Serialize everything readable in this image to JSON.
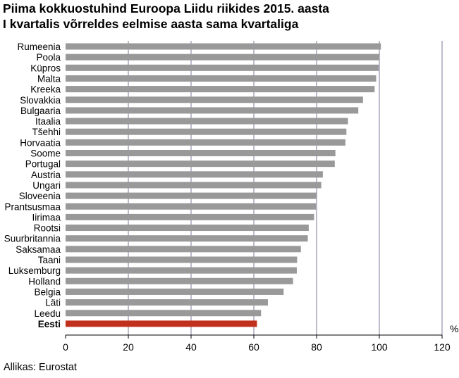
{
  "title_lines": [
    "Piima kokkuostuhind Euroopa Liidu riikides 2015. aasta",
    "I kvartalis võrreldes eelmise aasta sama kvartaliga"
  ],
  "source": "Allikas: Eurostat",
  "chart_data": {
    "type": "bar",
    "orientation": "horizontal",
    "categories": [
      "Rumeenia",
      "Poola",
      "Küpros",
      "Malta",
      "Kreeka",
      "Slovakkia",
      "Bulgaaria",
      "Itaalia",
      "Tšehhi",
      "Horvaatia",
      "Soome",
      "Portugal",
      "Austria",
      "Ungari",
      "Sloveenia",
      "Prantsusmaa",
      "Iirimaa",
      "Rootsi",
      "Suurbritannia",
      "Saksamaa",
      "Taani",
      "Luksemburg",
      "Holland",
      "Belgia",
      "Läti",
      "Leedu",
      "Eesti"
    ],
    "values": [
      100.5,
      100,
      99.8,
      99,
      98.5,
      94.8,
      93.3,
      90,
      89.5,
      89.2,
      86,
      85.8,
      82,
      81.5,
      80,
      79.8,
      79.2,
      77.5,
      77.2,
      75,
      73.8,
      73.7,
      72.5,
      69.5,
      64.5,
      62.3,
      61
    ],
    "highlight": "Eesti",
    "xlim": [
      0,
      120
    ],
    "xticks": [
      "0",
      "20",
      "40",
      "60",
      "80",
      "100",
      "120"
    ],
    "unit": "%",
    "grid": "vertical",
    "colors": {
      "bar": "#999999",
      "highlight": "#c0301c",
      "grid": "#7a7a9a"
    }
  }
}
